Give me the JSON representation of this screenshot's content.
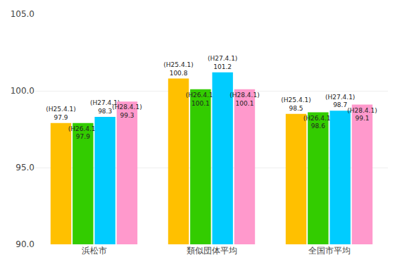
{
  "chart_data": {
    "type": "bar",
    "categories": [
      "浜松市",
      "類似団体平均",
      "全国市平均"
    ],
    "series": [
      {
        "name": "H25.4.1",
        "color": "#FFC000",
        "values": [
          97.9,
          100.8,
          98.5
        ],
        "value_labels": [
          "(H25.4.1)\n97.9",
          "(H25.4.1)\n100.8",
          "(H25.4.1)\n98.5"
        ]
      },
      {
        "name": "H26.4.1",
        "color": "#33CC00",
        "values": [
          97.9,
          100.1,
          98.6
        ],
        "value_labels": [
          "(H26.4.1)\n97.9",
          "(H26.4.1)\n100.1",
          "(H26.4.1)\n98.6"
        ]
      },
      {
        "name": "H27.4.1",
        "color": "#00CCFF",
        "values": [
          98.3,
          101.2,
          98.7
        ],
        "value_labels": [
          "(H27.4.1)\n98.3",
          "(H27.4.1)\n101.2",
          "(H27.4.1)\n98.7"
        ]
      },
      {
        "name": "H28.4.1",
        "color": "#FF99CC",
        "values": [
          99.3,
          100.1,
          99.1
        ],
        "value_labels": [
          "(H28.4.1)\n99.3",
          "(H28.4.1)\n100.1",
          "(H28.4.1)\n99.1"
        ]
      }
    ],
    "ylim": [
      90.0,
      105.0
    ],
    "yticks": [
      {
        "value": 90.0,
        "label": "90.0"
      },
      {
        "value": 95.0,
        "label": "95.0"
      },
      {
        "value": 100.0,
        "label": "100.0"
      },
      {
        "value": 105.0,
        "label": "105.0"
      }
    ],
    "grid": true,
    "data_labels": true
  }
}
